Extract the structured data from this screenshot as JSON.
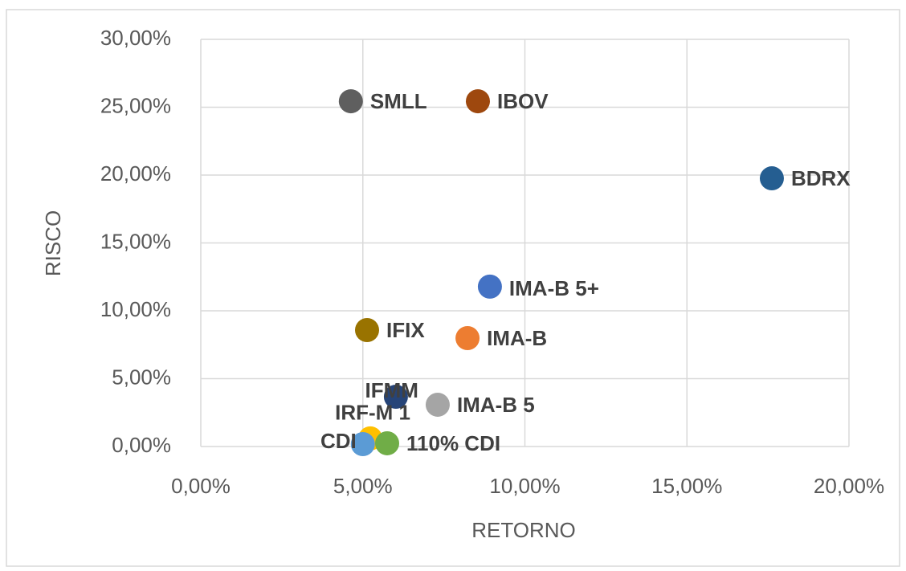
{
  "chart_data": {
    "type": "scatter",
    "x_label": "RETORNO",
    "y_label": "RISCO",
    "xlim": [
      0,
      20
    ],
    "ylim": [
      0,
      30
    ],
    "xticks": [
      {
        "value": 0,
        "label": "0,00%"
      },
      {
        "value": 5,
        "label": "5,00%"
      },
      {
        "value": 10,
        "label": "10,00%"
      },
      {
        "value": 15,
        "label": "15,00%"
      },
      {
        "value": 20,
        "label": "20,00%"
      }
    ],
    "yticks": [
      {
        "value": 0,
        "label": "0,00%"
      },
      {
        "value": 5,
        "label": "5,00%"
      },
      {
        "value": 10,
        "label": "10,00%"
      },
      {
        "value": 15,
        "label": "15,00%"
      },
      {
        "value": 20,
        "label": "20,00%"
      },
      {
        "value": 25,
        "label": "25,00%"
      },
      {
        "value": 30,
        "label": "30,00%"
      }
    ],
    "grid": true,
    "points": [
      {
        "label": "SMLL",
        "color": "#5f5f5f",
        "x": 4.63,
        "y": 25.44
      },
      {
        "label": "IBOV",
        "color": "#9e480e",
        "x": 8.55,
        "y": 25.44
      },
      {
        "label": "BDRX",
        "color": "#255e91",
        "x": 17.62,
        "y": 19.76
      },
      {
        "label": "IMA-B 5+",
        "color": "#4472c4",
        "x": 8.92,
        "y": 11.78
      },
      {
        "label": "IFIX",
        "color": "#997300",
        "x": 5.13,
        "y": 8.58
      },
      {
        "label": "IMA-B",
        "color": "#ed7d31",
        "x": 8.23,
        "y": 7.99
      },
      {
        "label": "IFMM",
        "color": "#264478",
        "x": 6.02,
        "y": 3.67
      },
      {
        "label": "IMA-B 5",
        "color": "#a5a5a5",
        "x": 7.31,
        "y": 3.08
      },
      {
        "label": "IRF-M 1",
        "color": "#ffc000",
        "x": 5.23,
        "y": 0.6
      },
      {
        "label": "CDI",
        "color": "#5b9bd5",
        "x": 5.0,
        "y": 0.18
      },
      {
        "label": "110% CDI",
        "color": "#70ad47",
        "x": 5.75,
        "y": 0.24
      }
    ]
  }
}
